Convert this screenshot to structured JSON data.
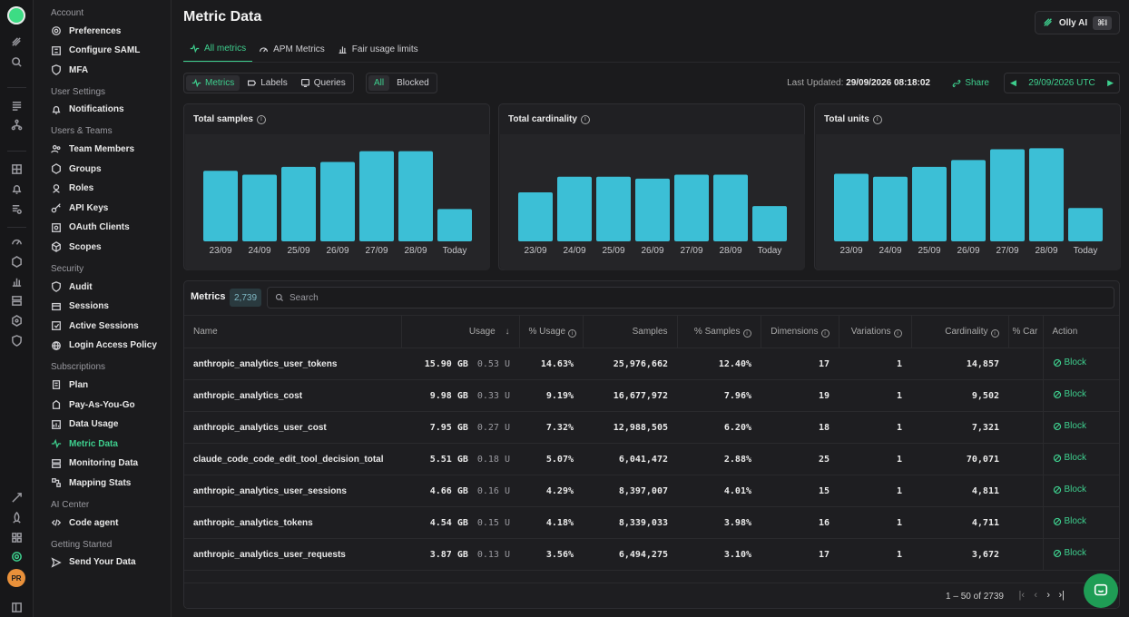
{
  "nav": {
    "sections": [
      {
        "title": "Account",
        "top": 9,
        "items": [
          {
            "label": "Preferences",
            "icon": "gear-icon"
          },
          {
            "label": "Configure SAML",
            "icon": "saml-icon"
          },
          {
            "label": "MFA",
            "icon": "shield-check-icon"
          }
        ]
      },
      {
        "title": "User Settings",
        "items": [
          {
            "label": "Notifications",
            "icon": "bell-icon"
          }
        ]
      },
      {
        "title": "Users & Teams",
        "items": [
          {
            "label": "Team Members",
            "icon": "users-icon"
          },
          {
            "label": "Groups",
            "icon": "groups-icon"
          },
          {
            "label": "Roles",
            "icon": "roles-icon"
          },
          {
            "label": "API Keys",
            "icon": "key-icon"
          },
          {
            "label": "OAuth Clients",
            "icon": "oauth-icon"
          },
          {
            "label": "Scopes",
            "icon": "scopes-icon"
          }
        ]
      },
      {
        "title": "Security",
        "items": [
          {
            "label": "Audit",
            "icon": "audit-shield-icon"
          },
          {
            "label": "Sessions",
            "icon": "sessions-icon"
          },
          {
            "label": "Active Sessions",
            "icon": "active-sessions-icon"
          },
          {
            "label": "Login Access Policy",
            "icon": "globe-icon"
          }
        ]
      },
      {
        "title": "Subscriptions",
        "items": [
          {
            "label": "Plan",
            "icon": "plan-icon"
          },
          {
            "label": "Pay-As-You-Go",
            "icon": "pay-icon"
          },
          {
            "label": "Data Usage",
            "icon": "data-usage-icon"
          },
          {
            "label": "Metric Data",
            "icon": "pulse-icon",
            "active": true
          },
          {
            "label": "Monitoring Data",
            "icon": "monitoring-icon"
          },
          {
            "label": "Mapping Stats",
            "icon": "mapping-icon"
          }
        ]
      },
      {
        "title": "AI Center",
        "items": [
          {
            "label": "Code agent",
            "icon": "code-icon"
          }
        ]
      },
      {
        "title": "Getting Started",
        "items": [
          {
            "label": "Send Your Data",
            "icon": "send-icon"
          }
        ]
      }
    ]
  },
  "rail": {
    "avatar_initials": "PR"
  },
  "page": {
    "title": "Metric Data",
    "olly_label": "Olly AI",
    "olly_kbd": "⌘I",
    "tabs": [
      {
        "label": "All metrics",
        "active": true
      },
      {
        "label": "APM Metrics"
      },
      {
        "label": "Fair usage limits"
      }
    ],
    "view_opts": [
      {
        "label": "Metrics",
        "active": true
      },
      {
        "label": "Labels"
      },
      {
        "label": "Queries"
      }
    ],
    "filter_opts": [
      {
        "label": "All",
        "active": true
      },
      {
        "label": "Blocked"
      }
    ],
    "last_updated_label": "Last Updated:",
    "last_updated_value": "29/09/2026 08:18:02",
    "share_label": "Share",
    "date_range": "29/09/2026 UTC"
  },
  "chart_data": [
    {
      "type": "bar",
      "title": "Total samples",
      "categories": [
        "23/09",
        "24/09",
        "25/09",
        "26/09",
        "27/09",
        "28/09",
        "Today"
      ],
      "values": [
        72,
        68,
        76,
        81,
        92,
        92,
        33
      ],
      "ylim": [
        0,
        100
      ]
    },
    {
      "type": "bar",
      "title": "Total cardinality",
      "categories": [
        "23/09",
        "24/09",
        "25/09",
        "26/09",
        "27/09",
        "28/09",
        "Today"
      ],
      "values": [
        50,
        66,
        66,
        64,
        68,
        68,
        36
      ],
      "ylim": [
        0,
        100
      ]
    },
    {
      "type": "bar",
      "title": "Total units",
      "categories": [
        "23/09",
        "24/09",
        "25/09",
        "26/09",
        "27/09",
        "28/09",
        "Today"
      ],
      "values": [
        69,
        66,
        76,
        83,
        94,
        95,
        34
      ],
      "ylim": [
        0,
        100
      ]
    }
  ],
  "table": {
    "title": "Metrics",
    "count": "2,739",
    "search_placeholder": "Search",
    "columns": [
      "Name",
      "Usage",
      "% Usage",
      "Samples",
      "% Samples",
      "Dimensions",
      "Variations",
      "Cardinality",
      "% Car",
      "Action"
    ],
    "rows": [
      {
        "name": "anthropic_analytics_user_tokens",
        "usage": "15.90 GB",
        "units": "0.53 U",
        "pct_usage": "14.63%",
        "samples": "25,976,662",
        "pct_samples": "12.40%",
        "dimensions": "17",
        "variations": "1",
        "cardinality": "14,857",
        "action": "Block"
      },
      {
        "name": "anthropic_analytics_cost",
        "usage": "9.98 GB",
        "units": "0.33 U",
        "pct_usage": "9.19%",
        "samples": "16,677,972",
        "pct_samples": "7.96%",
        "dimensions": "19",
        "variations": "1",
        "cardinality": "9,502",
        "action": "Block"
      },
      {
        "name": "anthropic_analytics_user_cost",
        "usage": "7.95 GB",
        "units": "0.27 U",
        "pct_usage": "7.32%",
        "samples": "12,988,505",
        "pct_samples": "6.20%",
        "dimensions": "18",
        "variations": "1",
        "cardinality": "7,321",
        "action": "Block"
      },
      {
        "name": "claude_code_code_edit_tool_decision_total",
        "usage": "5.51 GB",
        "units": "0.18 U",
        "pct_usage": "5.07%",
        "samples": "6,041,472",
        "pct_samples": "2.88%",
        "dimensions": "25",
        "variations": "1",
        "cardinality": "70,071",
        "action": "Block"
      },
      {
        "name": "anthropic_analytics_user_sessions",
        "usage": "4.66 GB",
        "units": "0.16 U",
        "pct_usage": "4.29%",
        "samples": "8,397,007",
        "pct_samples": "4.01%",
        "dimensions": "15",
        "variations": "1",
        "cardinality": "4,811",
        "action": "Block"
      },
      {
        "name": "anthropic_analytics_tokens",
        "usage": "4.54 GB",
        "units": "0.15 U",
        "pct_usage": "4.18%",
        "samples": "8,339,033",
        "pct_samples": "3.98%",
        "dimensions": "16",
        "variations": "1",
        "cardinality": "4,711",
        "action": "Block"
      },
      {
        "name": "anthropic_analytics_user_requests",
        "usage": "3.87 GB",
        "units": "0.13 U",
        "pct_usage": "3.56%",
        "samples": "6,494,275",
        "pct_samples": "3.10%",
        "dimensions": "17",
        "variations": "1",
        "cardinality": "3,672",
        "action": "Block"
      }
    ],
    "pagination": "1 – 50 of 2739"
  },
  "colors": {
    "accent": "#3ecf8e",
    "bar": "#3cbfd6"
  }
}
